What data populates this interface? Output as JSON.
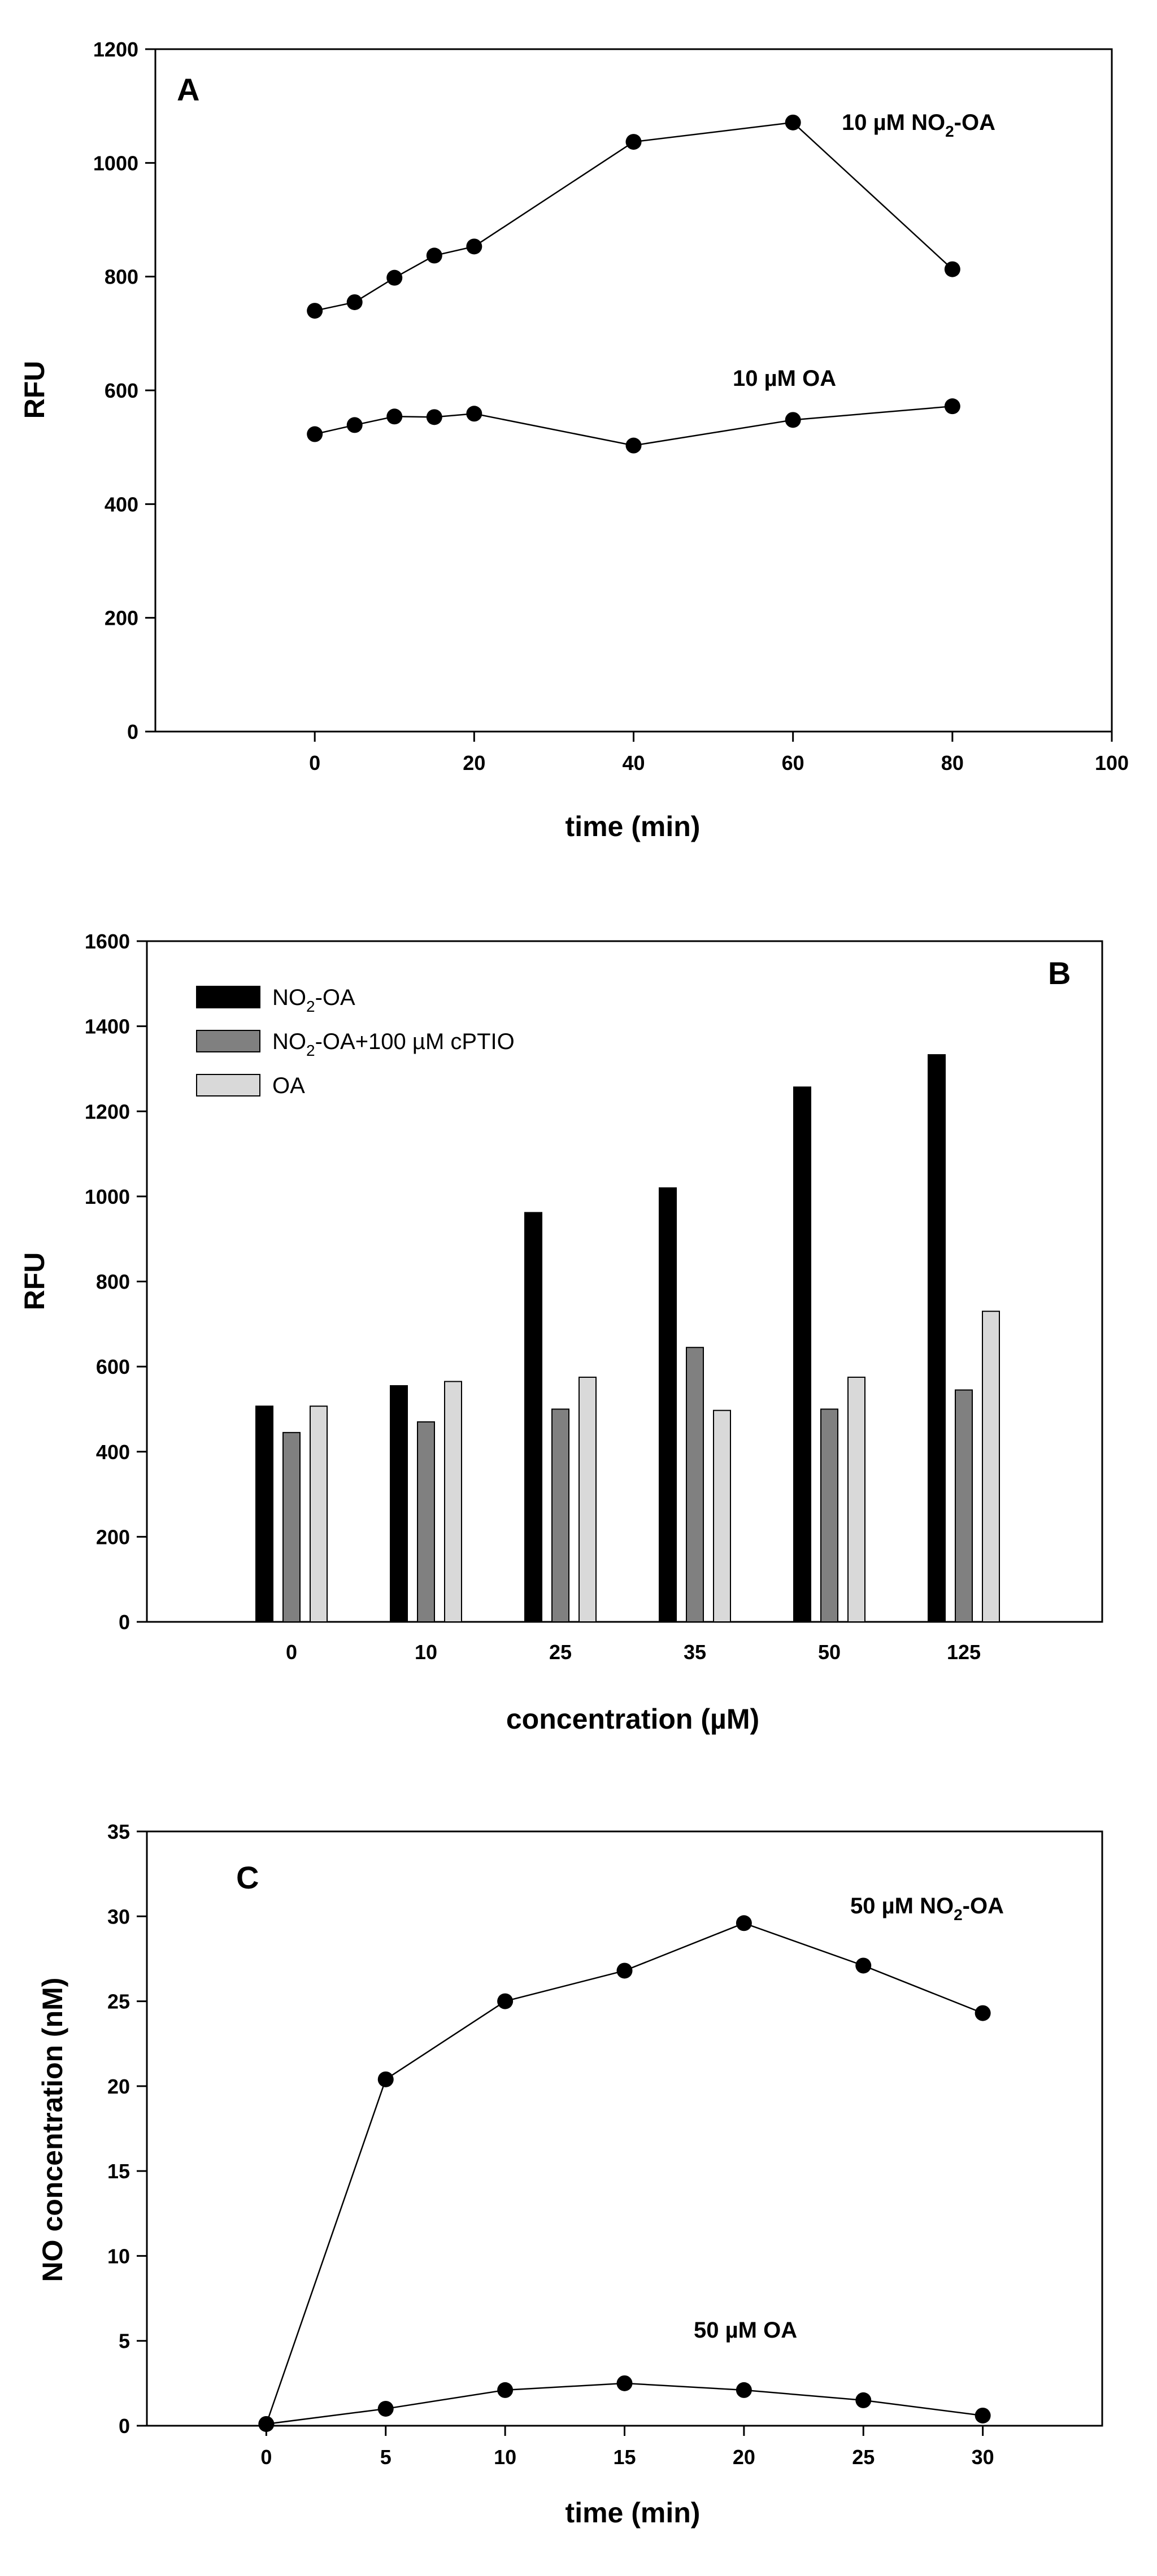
{
  "chart_data": [
    {
      "panel": "A",
      "type": "line",
      "xlabel": "time (min)",
      "ylabel": "RFU",
      "xlim": [
        -20,
        100
      ],
      "ylim": [
        0,
        1200
      ],
      "x_ticks": [
        "0",
        "20",
        "40",
        "60",
        "80",
        "100"
      ],
      "y_ticks": [
        "0",
        "200",
        "400",
        "600",
        "800",
        "1000",
        "1200"
      ],
      "series": [
        {
          "name": "10 µM NO2-OA",
          "label_main": "10 µM NO",
          "label_sub": "2",
          "label_tail": "-OA",
          "x": [
            0,
            5,
            10,
            15,
            20,
            40,
            60,
            80
          ],
          "values": [
            740,
            755,
            798,
            837,
            853,
            1037,
            1071,
            813
          ]
        },
        {
          "name": "10 µM OA",
          "label_main": "10 µM OA",
          "label_sub": "",
          "label_tail": "",
          "x": [
            0,
            5,
            10,
            15,
            20,
            40,
            60,
            80
          ],
          "values": [
            523,
            539,
            554,
            553,
            559,
            503,
            548,
            572
          ]
        }
      ]
    },
    {
      "panel": "B",
      "type": "bar",
      "xlabel": "concentration (µM)",
      "ylabel": "RFU",
      "ylim": [
        0,
        1600
      ],
      "y_ticks": [
        "0",
        "200",
        "400",
        "600",
        "800",
        "1000",
        "1200",
        "1400",
        "1600"
      ],
      "categories": [
        "0",
        "10",
        "25",
        "35",
        "50",
        "125"
      ],
      "legend_position": "top-left",
      "series": [
        {
          "name": "NO2-OA",
          "legend_main": "NO",
          "legend_sub": "2",
          "legend_tail": "-OA",
          "color": "#000000",
          "values": [
            507,
            555,
            962,
            1020,
            1257,
            1333
          ]
        },
        {
          "name": "NO2-OA+100 µM cPTIO",
          "legend_main": "NO",
          "legend_sub": "2",
          "legend_tail": "-OA+100 µM cPTIO",
          "color": "#808080",
          "values": [
            445,
            470,
            500,
            645,
            500,
            545
          ]
        },
        {
          "name": "OA",
          "legend_main": "OA",
          "legend_sub": "",
          "legend_tail": "",
          "color": "#d9d9d9",
          "values": [
            507,
            565,
            575,
            497,
            575,
            730
          ]
        }
      ]
    },
    {
      "panel": "C",
      "type": "line",
      "xlabel": "time (min)",
      "ylabel": "NO concentration (nM)",
      "xlim": [
        -5,
        35
      ],
      "ylim": [
        0,
        35
      ],
      "x_ticks": [
        "0",
        "5",
        "10",
        "15",
        "20",
        "25",
        "30"
      ],
      "y_ticks": [
        "0",
        "5",
        "10",
        "15",
        "20",
        "25",
        "30",
        "35"
      ],
      "series": [
        {
          "name": "50 µM NO2-OA",
          "label_main": "50 µM NO",
          "label_sub": "2",
          "label_tail": "-OA",
          "x": [
            0,
            5,
            10,
            15,
            20,
            25,
            30
          ],
          "values": [
            0.1,
            20.4,
            25.0,
            26.8,
            29.6,
            27.1,
            24.3
          ]
        },
        {
          "name": "50 µM OA",
          "label_main": "50 µM OA",
          "label_sub": "",
          "label_tail": "",
          "x": [
            0,
            5,
            10,
            15,
            20,
            25,
            30
          ],
          "values": [
            0.1,
            1.0,
            2.1,
            2.5,
            2.1,
            1.5,
            0.6
          ]
        }
      ]
    }
  ]
}
